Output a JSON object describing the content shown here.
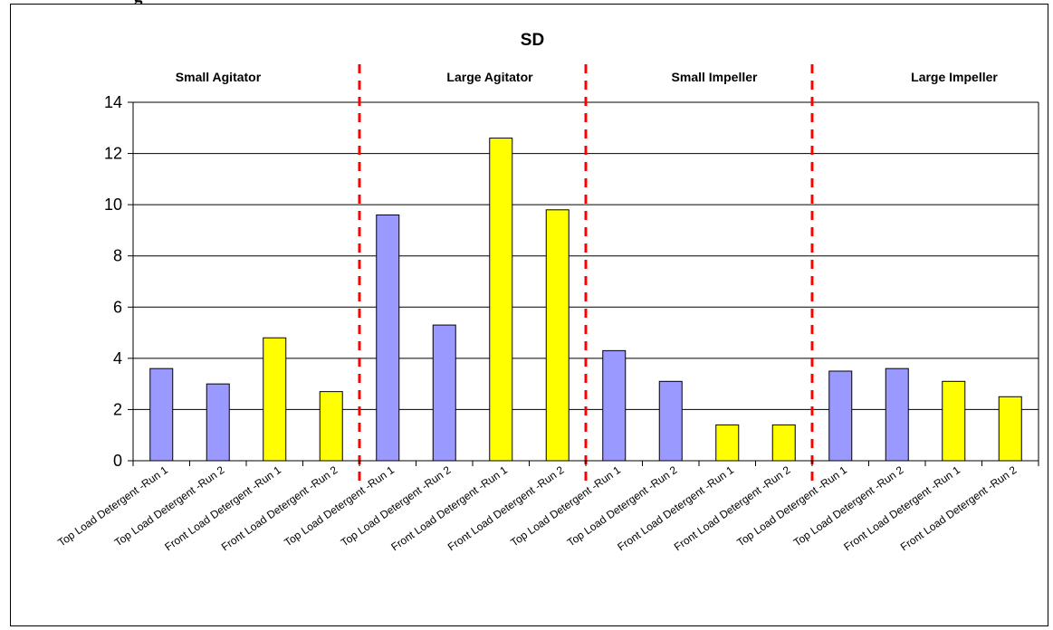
{
  "cut_heading": "g",
  "chart_data": {
    "type": "bar",
    "title": "SD",
    "xlabel": "",
    "ylabel": "",
    "ylim": [
      0,
      14
    ],
    "yticks": [
      0,
      2,
      4,
      6,
      8,
      10,
      12,
      14
    ],
    "grid": true,
    "legend": "none",
    "colors": {
      "top_load": "#9999ff",
      "front_load": "#ffff00",
      "separator": "#ff0000"
    },
    "groups": [
      "Small Agitator",
      "Large Agitator",
      "Small Impeller",
      "Large Impeller"
    ],
    "categories": [
      "Top Load Detergent -Run 1",
      "Top Load Detergent -Run 2",
      "Front Load Detergent -Run 1",
      "Front Load Detergent -Run 2",
      "Top Load Detergent -Run 1",
      "Top Load Detergent -Run 2",
      "Front Load Detergent -Run 1",
      "Front Load Detergent -Run 2",
      "Top Load Detergent -Run 1",
      "Top Load Detergent -Run 2",
      "Front Load Detergent -Run 1",
      "Front Load Detergent -Run 2",
      "Top Load Detergent -Run 1",
      "Top Load Detergent -Run 2",
      "Front Load Detergent -Run 1",
      "Front Load Detergent -Run 2"
    ],
    "values": [
      3.6,
      3.0,
      4.8,
      2.7,
      9.6,
      5.3,
      12.6,
      9.8,
      4.3,
      3.1,
      1.4,
      1.4,
      3.5,
      3.6,
      3.1,
      2.5
    ],
    "bar_kind": [
      "top",
      "top",
      "front",
      "front",
      "top",
      "top",
      "front",
      "front",
      "top",
      "top",
      "front",
      "front",
      "top",
      "top",
      "front",
      "front"
    ]
  }
}
